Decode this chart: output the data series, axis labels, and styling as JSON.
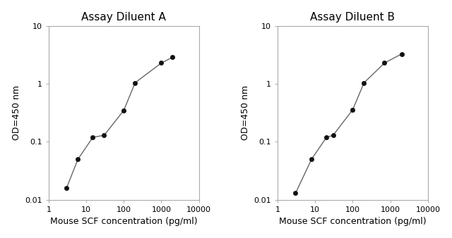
{
  "panel_A": {
    "title": "Assay Diluent A",
    "x": [
      3,
      6,
      15,
      30,
      100,
      200,
      1000,
      2000
    ],
    "y": [
      0.016,
      0.05,
      0.12,
      0.13,
      0.35,
      1.05,
      2.3,
      2.9
    ],
    "xlabel": "Mouse SCF concentration (pg/ml)",
    "ylabel": "OD=450 nm",
    "xlim": [
      1,
      10000
    ],
    "ylim": [
      0.01,
      10
    ]
  },
  "panel_B": {
    "title": "Assay Diluent B",
    "x": [
      3,
      8,
      20,
      30,
      100,
      200,
      700,
      2000
    ],
    "y": [
      0.013,
      0.05,
      0.12,
      0.13,
      0.36,
      1.05,
      2.3,
      3.3
    ],
    "xlabel": "Mouse SCF concentration (pg/ml)",
    "ylabel": "OD=450 nm",
    "xlim": [
      1,
      10000
    ],
    "ylim": [
      0.01,
      10
    ]
  },
  "line_color": "#666666",
  "marker_color": "#111111",
  "marker_size": 4.5,
  "line_width": 1.0,
  "title_fontsize": 11,
  "label_fontsize": 9,
  "tick_fontsize": 8,
  "bg_color": "#ffffff",
  "x_ticks": [
    1,
    10,
    100,
    1000,
    10000
  ],
  "x_tick_labels": [
    "1",
    "10",
    "100",
    "1000",
    "10000"
  ],
  "y_ticks": [
    0.01,
    0.1,
    1,
    10
  ],
  "y_tick_labels": [
    "0.01",
    "0.1",
    "1",
    "10"
  ]
}
